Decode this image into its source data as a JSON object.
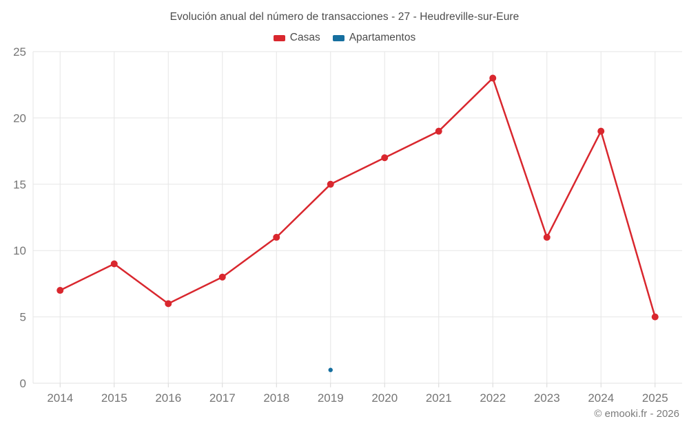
{
  "header": {
    "title": "Evolución anual del número de transacciones - 27 - Heudreville-sur-Eure"
  },
  "footer": {
    "copyright": "© emooki.fr - 2026"
  },
  "colors": {
    "casas": "#d9272e",
    "apartamentos": "#166f9f",
    "grid": "#e6e6e6",
    "axis_line": "#e0e0e0",
    "tick": "#d6d6d6",
    "axis_label": "#757575",
    "background": "#ffffff"
  },
  "chart_data": {
    "type": "line",
    "title": "Evolución anual del número de transacciones - 27 - Heudreville-sur-Eure",
    "categories": [
      "2014",
      "2015",
      "2016",
      "2017",
      "2018",
      "2019",
      "2020",
      "2021",
      "2022",
      "2023",
      "2024",
      "2025"
    ],
    "series": [
      {
        "name": "Casas",
        "color": "#d9272e",
        "point_radius": 5,
        "line_width": 2.5,
        "values": [
          7,
          9,
          6,
          8,
          11,
          15,
          17,
          19,
          23,
          11,
          19,
          5
        ]
      },
      {
        "name": "Apartamentos",
        "color": "#166f9f",
        "point_radius": 3.2,
        "line_width": 2.5,
        "values": [
          null,
          null,
          null,
          null,
          null,
          1,
          null,
          null,
          null,
          null,
          null,
          null
        ]
      }
    ],
    "xlabel": "",
    "ylabel": "",
    "ylim": [
      0,
      25
    ],
    "yticks": [
      0,
      5,
      10,
      15,
      20,
      25
    ],
    "grid": true,
    "legend_position": "top"
  }
}
